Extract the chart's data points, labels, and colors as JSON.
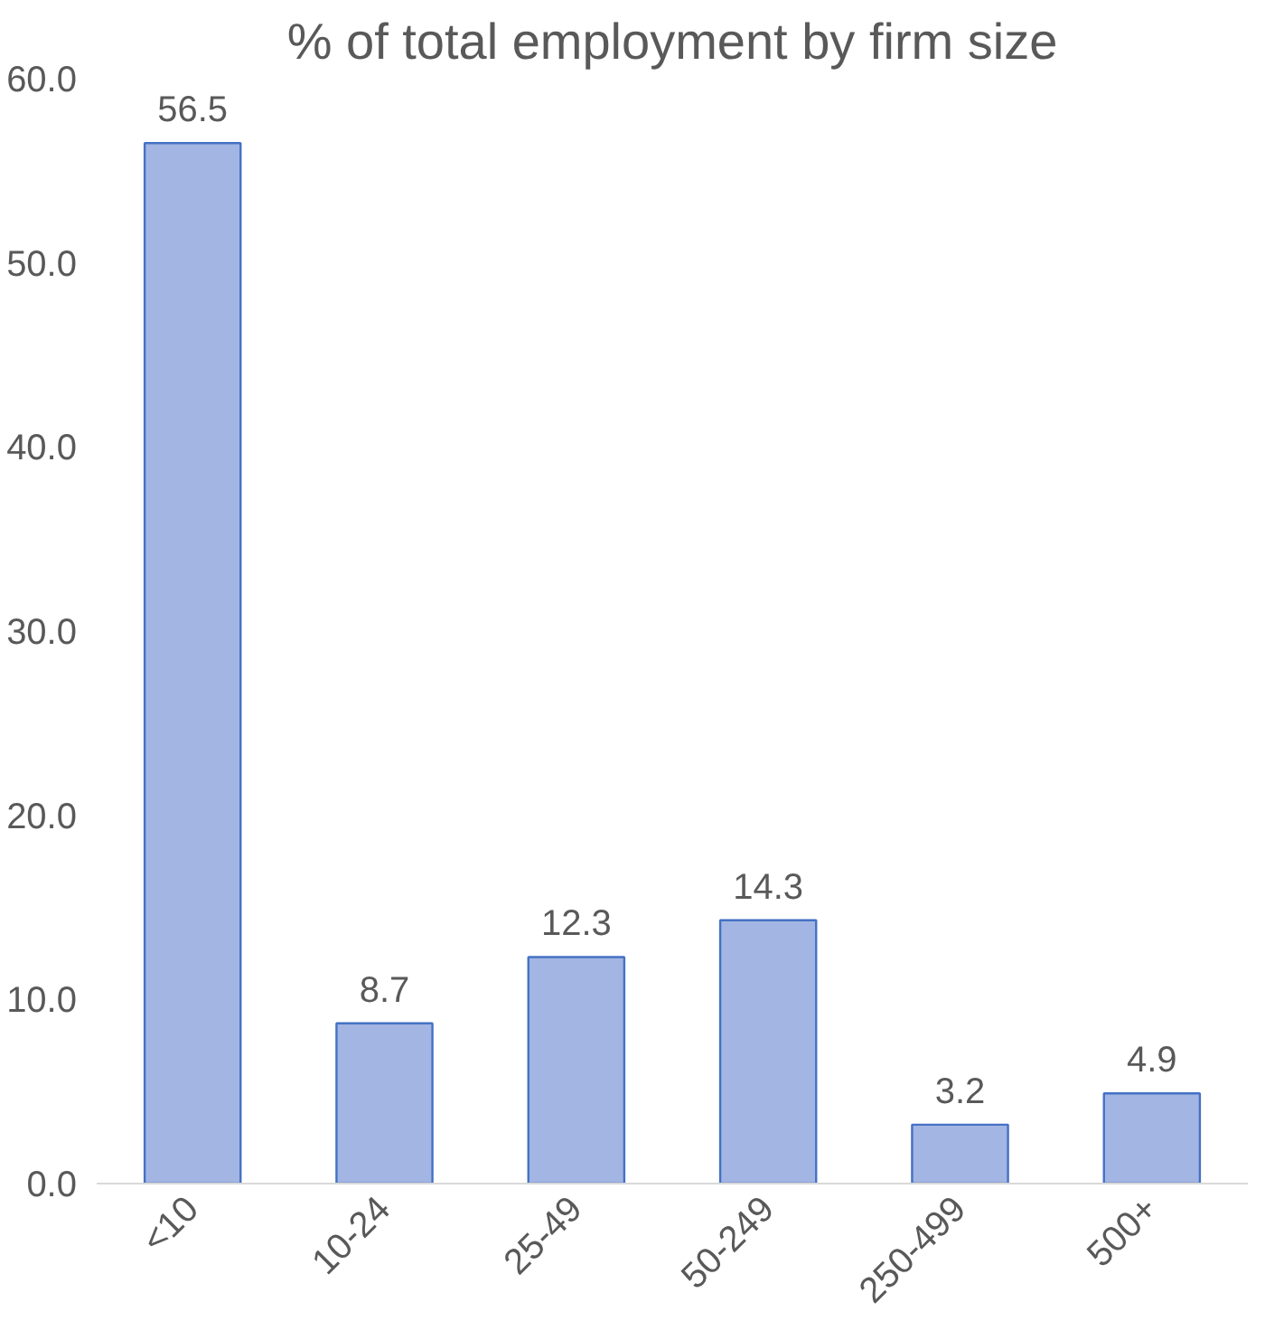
{
  "chart_data": {
    "type": "bar",
    "title": "% of total employment by firm size",
    "categories": [
      "<10",
      "10-24",
      "25-49",
      "50-249",
      "250-499",
      "500+"
    ],
    "values": [
      56.5,
      8.7,
      12.3,
      14.3,
      3.2,
      4.9
    ],
    "color": "#a3b5e2",
    "ylim": [
      0,
      60
    ],
    "yticks": [
      {
        "value": 0,
        "label": "0.0"
      },
      {
        "value": 10,
        "label": "10.0"
      },
      {
        "value": 20,
        "label": "20.0"
      },
      {
        "value": 30,
        "label": "30.0"
      },
      {
        "value": 40,
        "label": "40.0"
      },
      {
        "value": 50,
        "label": "50.0"
      },
      {
        "value": 60,
        "label": "60.0"
      }
    ],
    "grid": false,
    "data_labels": true
  }
}
